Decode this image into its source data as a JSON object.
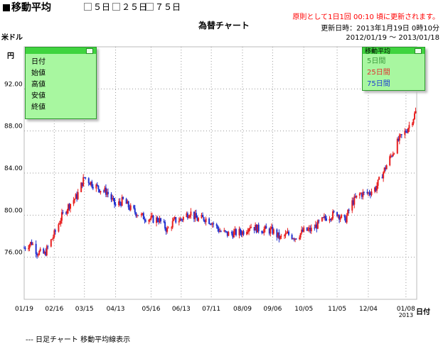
{
  "toolbar": {
    "title": "移動平均",
    "checks": [
      "５日",
      "２５日",
      "７５日"
    ]
  },
  "notice": "原則として1日1回 00:10 頃に更新されます。",
  "updated": "更新日時：2013年1月19日 0時10分",
  "range": "2012/01/19 〜 2013/01/18",
  "chart_title": "為替チャート",
  "y_unit_line1": "米ドル",
  "y_unit_line2": "円",
  "x_unit": "日付",
  "info_panel": [
    "日付",
    "始値",
    "高値",
    "安値",
    "終値"
  ],
  "ma_panel": {
    "title": "移動平均",
    "items": [
      {
        "label": "5日間",
        "color": "#3a9a3a"
      },
      {
        "label": "25日間",
        "color": "#e03030"
      },
      {
        "label": "75日間",
        "color": "#2040d0"
      }
    ]
  },
  "bottom_text": "--- 日足チャート  移動平均線表示",
  "colors": {
    "up": "#e82020",
    "down": "#2030d0",
    "grid": "#9a9a9a"
  },
  "chart_data": {
    "type": "candlestick",
    "ylim": [
      72,
      96
    ],
    "y_ticks": [
      76.0,
      80.0,
      84.0,
      88.0,
      92.0
    ],
    "y_tick_labels": [
      "76.00",
      "80.00",
      "84.00",
      "88.00",
      "92.00"
    ],
    "x_ticks": [
      "01/19",
      "02/16",
      "03/15",
      "04/13",
      "05/16",
      "06/13",
      "07/11",
      "08/09",
      "09/06",
      "10/05",
      "11/05",
      "12/04",
      "01/08"
    ],
    "x_tick_year": "2013",
    "x_range": [
      "2012-01-19",
      "2013-01-18"
    ],
    "close_path": [
      [
        "2012-01-19",
        76.9
      ],
      [
        "2012-01-26",
        77.4
      ],
      [
        "2012-01-31",
        76.5
      ],
      [
        "2012-02-07",
        76.3
      ],
      [
        "2012-02-16",
        78.2
      ],
      [
        "2012-02-23",
        79.9
      ],
      [
        "2012-03-01",
        81.0
      ],
      [
        "2012-03-08",
        81.8
      ],
      [
        "2012-03-15",
        83.6
      ],
      [
        "2012-03-22",
        83.0
      ],
      [
        "2012-03-29",
        82.5
      ],
      [
        "2012-04-05",
        82.2
      ],
      [
        "2012-04-13",
        80.9
      ],
      [
        "2012-04-20",
        81.4
      ],
      [
        "2012-04-27",
        80.6
      ],
      [
        "2012-05-07",
        79.9
      ],
      [
        "2012-05-16",
        79.6
      ],
      [
        "2012-05-23",
        79.6
      ],
      [
        "2012-05-31",
        78.6
      ],
      [
        "2012-06-07",
        79.5
      ],
      [
        "2012-06-13",
        79.6
      ],
      [
        "2012-06-21",
        80.3
      ],
      [
        "2012-06-28",
        79.6
      ],
      [
        "2012-07-05",
        79.7
      ],
      [
        "2012-07-11",
        79.4
      ],
      [
        "2012-07-19",
        78.5
      ],
      [
        "2012-07-26",
        78.2
      ],
      [
        "2012-08-02",
        78.3
      ],
      [
        "2012-08-09",
        78.4
      ],
      [
        "2012-08-16",
        79.0
      ],
      [
        "2012-08-23",
        78.7
      ],
      [
        "2012-08-30",
        78.6
      ],
      [
        "2012-09-06",
        78.5
      ],
      [
        "2012-09-13",
        77.8
      ],
      [
        "2012-09-20",
        78.2
      ],
      [
        "2012-09-27",
        77.9
      ],
      [
        "2012-10-05",
        78.5
      ],
      [
        "2012-10-12",
        78.6
      ],
      [
        "2012-10-19",
        79.2
      ],
      [
        "2012-10-26",
        79.8
      ],
      [
        "2012-11-05",
        80.2
      ],
      [
        "2012-11-12",
        79.4
      ],
      [
        "2012-11-19",
        81.2
      ],
      [
        "2012-11-26",
        82.0
      ],
      [
        "2012-12-04",
        82.1
      ],
      [
        "2012-12-11",
        82.6
      ],
      [
        "2012-12-18",
        84.1
      ],
      [
        "2012-12-25",
        85.6
      ],
      [
        "2013-01-01",
        87.1
      ],
      [
        "2013-01-08",
        88.0
      ],
      [
        "2013-01-14",
        89.1
      ],
      [
        "2013-01-18",
        90.0
      ]
    ]
  }
}
